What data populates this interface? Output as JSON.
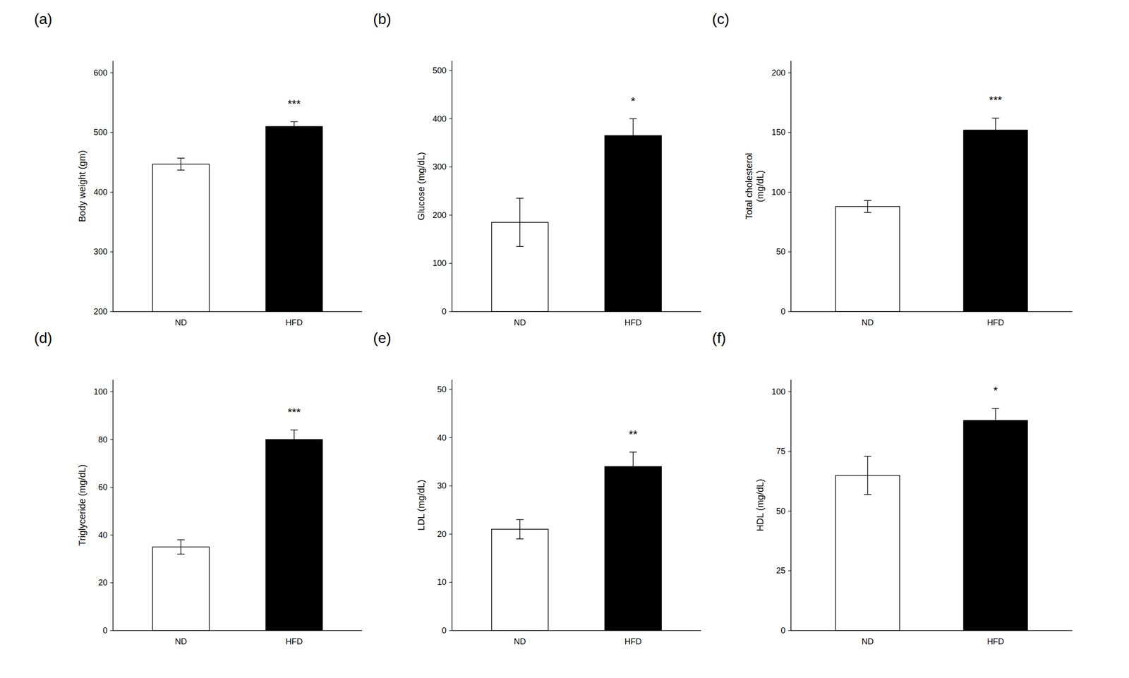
{
  "chart_data": [
    {
      "type": "bar",
      "title": "(a)",
      "ylabel": "Body weight (gm)",
      "categories": [
        "ND",
        "HFD"
      ],
      "values": [
        447,
        510
      ],
      "errors": [
        10,
        8
      ],
      "ylim": [
        200,
        620
      ],
      "yticks": [
        200,
        300,
        400,
        500,
        600
      ],
      "annotations": [
        {
          "text": "***",
          "x": "HFD"
        }
      ],
      "colors": [
        "white",
        "black"
      ],
      "grid": false
    },
    {
      "type": "bar",
      "title": "(b)",
      "ylabel": "Glucose (mg/dL)",
      "categories": [
        "ND",
        "HFD"
      ],
      "values": [
        185,
        365
      ],
      "errors": [
        50,
        35
      ],
      "ylim": [
        0,
        520
      ],
      "yticks": [
        0,
        100,
        200,
        300,
        400,
        500
      ],
      "annotations": [
        {
          "text": "*",
          "x": "HFD"
        }
      ],
      "colors": [
        "white",
        "black"
      ],
      "grid": false
    },
    {
      "type": "bar",
      "title": "(c)",
      "ylabel": "Total cholesterol\n(mg/dL)",
      "categories": [
        "ND",
        "HFD"
      ],
      "values": [
        88,
        152
      ],
      "errors": [
        5,
        10
      ],
      "ylim": [
        0,
        210
      ],
      "yticks": [
        0,
        50,
        100,
        150,
        200
      ],
      "annotations": [
        {
          "text": "***",
          "x": "HFD"
        }
      ],
      "colors": [
        "white",
        "black"
      ],
      "grid": false
    },
    {
      "type": "bar",
      "title": "(d)",
      "ylabel": "Triglyceride (mg/dL)",
      "categories": [
        "ND",
        "HFD"
      ],
      "values": [
        35,
        80
      ],
      "errors": [
        3,
        4
      ],
      "ylim": [
        0,
        105
      ],
      "yticks": [
        0,
        20,
        40,
        60,
        80,
        100
      ],
      "annotations": [
        {
          "text": "***",
          "x": "HFD"
        }
      ],
      "colors": [
        "white",
        "black"
      ],
      "grid": false
    },
    {
      "type": "bar",
      "title": "(e)",
      "ylabel": "LDL (mg/dL)",
      "categories": [
        "ND",
        "HFD"
      ],
      "values": [
        21,
        34
      ],
      "errors": [
        2,
        3
      ],
      "ylim": [
        0,
        52
      ],
      "yticks": [
        0,
        10,
        20,
        30,
        40,
        50
      ],
      "annotations": [
        {
          "text": "**",
          "x": "HFD"
        }
      ],
      "colors": [
        "white",
        "black"
      ],
      "grid": false
    },
    {
      "type": "bar",
      "title": "(f)",
      "ylabel": "HDL (mg/dL)",
      "categories": [
        "ND",
        "HFD"
      ],
      "values": [
        65,
        88
      ],
      "errors": [
        8,
        5
      ],
      "ylim": [
        0,
        105
      ],
      "yticks": [
        0,
        25,
        50,
        75,
        100
      ],
      "annotations": [
        {
          "text": "*",
          "x": "HFD"
        }
      ],
      "colors": [
        "white",
        "black"
      ],
      "grid": false
    }
  ]
}
